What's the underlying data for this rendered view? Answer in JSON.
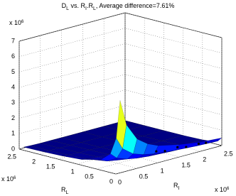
{
  "chart_data": {
    "type": "surface",
    "title": [
      "D",
      "L",
      " vs. R",
      "I",
      ".R",
      "L",
      ", Average difference=7.61%"
    ],
    "xlabel": [
      "R",
      "I"
    ],
    "ylabel": [
      "R",
      "L"
    ],
    "x_exponent": [
      "x 10",
      "6"
    ],
    "y_exponent": [
      "x 10",
      "6"
    ],
    "z_exponent": [
      "x 10",
      "6"
    ],
    "xlim": [
      0,
      2.5
    ],
    "xticks": [
      0,
      0.5,
      1,
      1.5,
      2,
      2.5
    ],
    "ylim": [
      0,
      2.5
    ],
    "yticks": [
      0,
      0.5,
      1,
      1.5,
      2,
      2.5
    ],
    "zlim": [
      0,
      7
    ],
    "zticks": [
      0,
      1,
      2,
      3,
      4,
      5,
      6,
      7
    ],
    "grid": true,
    "colormap": "jet",
    "x": [
      0.1,
      0.25,
      0.5,
      0.75,
      1,
      1.5,
      2,
      2.5
    ],
    "y": [
      0,
      0.1,
      0.25,
      0.5,
      1,
      1.5,
      2,
      2.5
    ],
    "z": [
      [
        4.7,
        3.0,
        1.9,
        1.4,
        1.1,
        0.8,
        0.6,
        0.5
      ],
      [
        2.19,
        1.4,
        0.88,
        0.65,
        0.51,
        0.37,
        0.28,
        0.23
      ],
      [
        1.08,
        0.69,
        0.44,
        0.32,
        0.25,
        0.18,
        0.14,
        0.12
      ],
      [
        0.52,
        0.33,
        0.21,
        0.16,
        0.12,
        0.09,
        0.07,
        0.06
      ],
      [
        0.22,
        0.14,
        0.09,
        0.07,
        0.05,
        0.04,
        0.03,
        0.02
      ],
      [
        0.13,
        0.08,
        0.05,
        0.04,
        0.03,
        0.02,
        0.02,
        0.01
      ],
      [
        0.08,
        0.05,
        0.03,
        0.03,
        0.02,
        0.01,
        0.01,
        0.01
      ],
      [
        0.06,
        0.04,
        0.02,
        0.02,
        0.01,
        0.01,
        0.01,
        0.01
      ]
    ],
    "points": {
      "color": "#000000",
      "x": [
        1.0,
        1.25,
        1.5,
        1.75,
        2.0,
        2.2
      ],
      "y": [
        0.05,
        0.1,
        0.05,
        0.1,
        0.05,
        0.08
      ],
      "z": [
        0.7,
        0.5,
        0.6,
        0.4,
        0.45,
        0.35
      ]
    }
  }
}
